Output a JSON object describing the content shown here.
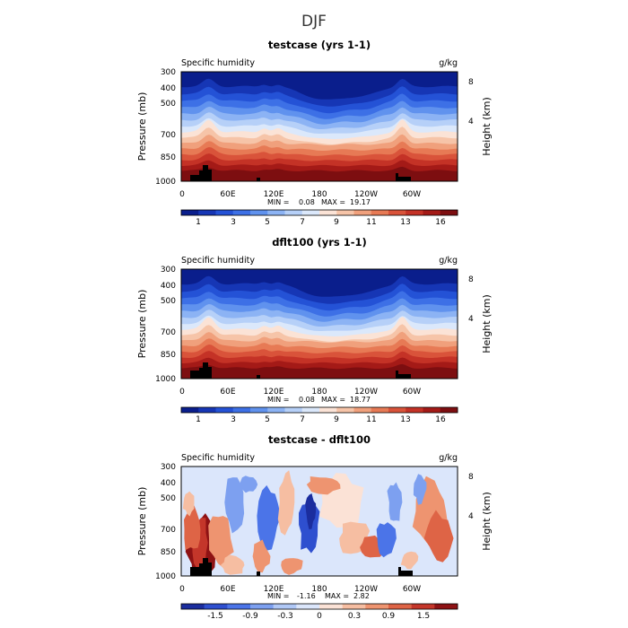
{
  "figure": {
    "title": "DJF"
  },
  "chart_data": [
    {
      "type": "heatmap",
      "title": "testcase (yrs 1-1)",
      "left_label": "Specific humidity",
      "units": "g/kg",
      "ylabel": "Pressure (mb)",
      "ylabel_right": "Height (km)",
      "x_ticks": [
        "0",
        "60E",
        "120E",
        "180",
        "120W",
        "60W"
      ],
      "y_ticks": [
        "300",
        "400",
        "500",
        "700",
        "850",
        "1000"
      ],
      "y_ticks_right": [
        "8",
        "4"
      ],
      "min_label": "MIN =",
      "min_value": "0.08",
      "max_label": "MAX =",
      "max_value": "19.17",
      "colorbar_ticks": [
        "1",
        "3",
        "5",
        "7",
        "9",
        "11",
        "13",
        "16"
      ],
      "colors": [
        "#0a1e8c",
        "#1636b5",
        "#2452d6",
        "#3d70e6",
        "#6092ee",
        "#8cb3f4",
        "#b6d0f8",
        "#dbe8fb",
        "#fbe3d6",
        "#f6c4a8",
        "#f0a07c",
        "#e77a55",
        "#d9533a",
        "#c43226",
        "#a41a17",
        "#7d0e10"
      ]
    },
    {
      "type": "heatmap",
      "title": "dflt100 (yrs 1-1)",
      "left_label": "Specific humidity",
      "units": "g/kg",
      "ylabel": "Pressure (mb)",
      "ylabel_right": "Height (km)",
      "x_ticks": [
        "0",
        "60E",
        "120E",
        "180",
        "120W",
        "60W"
      ],
      "y_ticks": [
        "300",
        "400",
        "500",
        "700",
        "850",
        "1000"
      ],
      "y_ticks_right": [
        "8",
        "4"
      ],
      "min_label": "MIN =",
      "min_value": "0.08",
      "max_label": "MAX =",
      "max_value": "18.77",
      "colorbar_ticks": [
        "1",
        "3",
        "5",
        "7",
        "9",
        "11",
        "13",
        "16"
      ],
      "colors": [
        "#0a1e8c",
        "#1636b5",
        "#2452d6",
        "#3d70e6",
        "#6092ee",
        "#8cb3f4",
        "#b6d0f8",
        "#dbe8fb",
        "#fbe3d6",
        "#f6c4a8",
        "#f0a07c",
        "#e77a55",
        "#d9533a",
        "#c43226",
        "#a41a17",
        "#7d0e10"
      ]
    },
    {
      "type": "heatmap",
      "title": "testcase - dflt100",
      "left_label": "Specific humidity",
      "units": "g/kg",
      "ylabel": "Pressure (mb)",
      "ylabel_right": "Height (km)",
      "x_ticks": [
        "0",
        "60E",
        "120E",
        "180",
        "120W",
        "60W"
      ],
      "y_ticks": [
        "300",
        "400",
        "500",
        "700",
        "850",
        "1000"
      ],
      "y_ticks_right": [
        "8",
        "4"
      ],
      "min_label": "MIN =",
      "min_value": "-1.16",
      "max_label": "MAX =",
      "max_value": "2.82",
      "colorbar_ticks": [
        "-1.5",
        "-0.9",
        "-0.3",
        "0",
        "0.3",
        "0.9",
        "1.5"
      ],
      "colors": [
        "#1b2d9e",
        "#2e4fcf",
        "#4b74e8",
        "#7da0f0",
        "#b0c8f6",
        "#dbe6fb",
        "#fbe2d6",
        "#f6bea2",
        "#ee9470",
        "#de6446",
        "#c4362a",
        "#8e1214"
      ]
    }
  ]
}
